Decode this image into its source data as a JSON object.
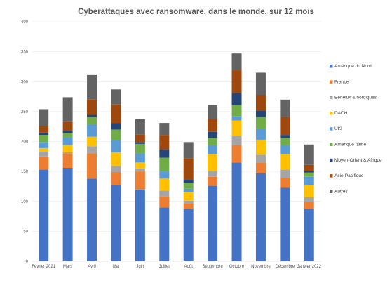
{
  "chart_data": {
    "type": "bar",
    "stacked": true,
    "title": "Cyberattaques avec ransomware, dans le monde, sur 12 mois",
    "xlabel": "",
    "ylabel": "",
    "ylim": [
      0,
      400
    ],
    "yticks": [
      0,
      50,
      100,
      150,
      200,
      250,
      300,
      350,
      400
    ],
    "grid": true,
    "legend_position": "right",
    "categories": [
      "Février 2021",
      "Mars",
      "Avril",
      "Mai",
      "Juin",
      "Juillet",
      "Août",
      "Septembre",
      "Octobre",
      "Novembre",
      "Décembre",
      "Janvier 2022"
    ],
    "series": [
      {
        "name": "Amérique du Nord",
        "color": "#4472C4",
        "values": [
          153,
          156,
          138,
          127,
          120,
          90,
          87,
          126,
          165,
          147,
          123,
          88
        ]
      },
      {
        "name": "France",
        "color": "#ED7D31",
        "values": [
          22,
          24,
          42,
          22,
          30,
          18,
          10,
          15,
          29,
          18,
          16,
          11
        ]
      },
      {
        "name": "Benelux & nordiques",
        "color": "#A5A5A5",
        "values": [
          8,
          2,
          12,
          10,
          5,
          10,
          4,
          10,
          15,
          13,
          14,
          8
        ]
      },
      {
        "name": "DACH",
        "color": "#FFC000",
        "values": [
          6,
          12,
          16,
          23,
          10,
          20,
          15,
          28,
          26,
          25,
          26,
          20
        ]
      },
      {
        "name": "UKI",
        "color": "#5B9BD5",
        "values": [
          10,
          13,
          21,
          20,
          15,
          12,
          5,
          15,
          7,
          18,
          15,
          14
        ]
      },
      {
        "name": "Amérique latine",
        "color": "#70AD47",
        "values": [
          12,
          7,
          12,
          18,
          16,
          23,
          10,
          12,
          19,
          20,
          12,
          7
        ]
      },
      {
        "name": "Moyen-Orient & Afrique",
        "color": "#264478",
        "values": [
          4,
          4,
          4,
          11,
          3,
          14,
          6,
          10,
          20,
          11,
          5,
          3
        ]
      },
      {
        "name": "Asie-Pacifique",
        "color": "#9E480E",
        "values": [
          11,
          15,
          25,
          31,
          13,
          24,
          35,
          22,
          38,
          26,
          30,
          10
        ]
      },
      {
        "name": "Autres",
        "color": "#636363",
        "values": [
          28,
          41,
          41,
          25,
          25,
          20,
          27,
          23,
          28,
          37,
          29,
          34
        ]
      }
    ]
  }
}
